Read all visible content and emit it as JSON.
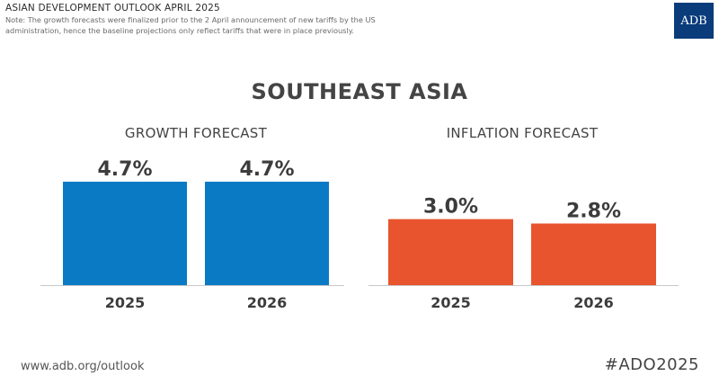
{
  "header": {
    "title": "ASIAN DEVELOPMENT OUTLOOK APRIL 2025",
    "note": "Note: The growth forecasts were finalized prior to the 2 April announcement of new tariffs by the US administration, hence the baseline projections only reflect tariffs that were in place previously.",
    "logo_text": "ADB"
  },
  "region_title": "SOUTHEAST ASIA",
  "chart_data": [
    {
      "type": "bar",
      "title": "GROWTH FORECAST",
      "categories": [
        "2025",
        "2026"
      ],
      "values": [
        4.7,
        4.7
      ],
      "labels": [
        "4.7%",
        "4.7%"
      ],
      "color": "#0b7ac5",
      "ylim": [
        0,
        4.7
      ]
    },
    {
      "type": "bar",
      "title": "INFLATION FORECAST",
      "categories": [
        "2025",
        "2026"
      ],
      "values": [
        3.0,
        2.8
      ],
      "labels": [
        "3.0%",
        "2.8%"
      ],
      "color": "#e8542d",
      "ylim": [
        0,
        4.7
      ]
    }
  ],
  "footer": {
    "url": "www.adb.org/outlook",
    "hashtag": "#ADO2025"
  }
}
